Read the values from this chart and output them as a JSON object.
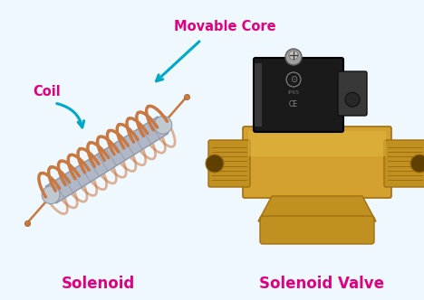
{
  "bg_color": "#f0f8ff",
  "border_color": "#aac8e8",
  "coil_color": "#c87840",
  "coil_color_dark": "#a05820",
  "core_color": "#b0b8c8",
  "core_stripe": "#9098a8",
  "label_pink": "#e0007f",
  "label_cyan": "#00a8c8",
  "label_solenoid": "Solenoid",
  "label_valve": "Solenoid Valve",
  "label_coil": "Coil",
  "label_core": "Movable Core",
  "brass_light": "#d4a030",
  "brass_mid": "#c09020",
  "brass_dark": "#a07010",
  "brass_shadow": "#805000",
  "black_body": "#1a1a1a",
  "black_mid": "#2a2a2a",
  "connector_color": "#383838",
  "metal_light": "#c0c0c0",
  "metal_dark": "#808080",
  "figsize": [
    4.68,
    3.32
  ],
  "dpi": 100
}
